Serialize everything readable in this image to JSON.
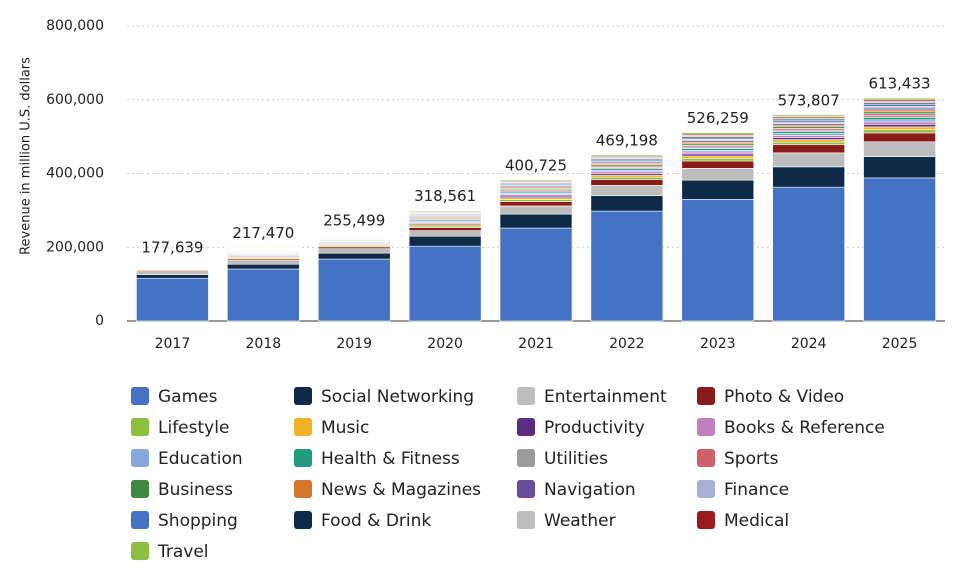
{
  "chart_data": {
    "type": "stacked-bar",
    "y_label": "Revenue in million U.S. dollars",
    "categories": [
      "2017",
      "2018",
      "2019",
      "2020",
      "2021",
      "2022",
      "2023",
      "2024",
      "2025"
    ],
    "ylim": [
      0,
      800000
    ],
    "yticks": [
      0,
      {
        "value": 200000,
        "label": "200,000"
      },
      {
        "value": 400000,
        "label": "400,000"
      },
      {
        "value": 600000,
        "label": "600,000"
      },
      {
        "value": 800000,
        "label": "800,000"
      }
    ],
    "grid": true,
    "totals": {
      "values": [
        177639,
        217470,
        255499,
        318561,
        400725,
        469198,
        526259,
        573807,
        613433
      ],
      "value_labels": [
        "177,639",
        "217,470",
        "255,499",
        "318,561",
        "400,725",
        "469,198",
        "526,259",
        "573,807",
        "613,433"
      ]
    },
    "series": [
      {
        "name": "Games",
        "color": "#4472c4",
        "values": [
          116000,
          141000,
          168000,
          203000,
          252000,
          298000,
          330000,
          363000,
          388000
        ]
      },
      {
        "name": "Social Networking",
        "color": "#0f2a47",
        "values": [
          10000,
          13000,
          16000,
          27000,
          38000,
          42000,
          52000,
          55000,
          58000
        ]
      },
      {
        "name": "Entertainment",
        "color": "#bdbdbd",
        "values": [
          8000,
          10000,
          12000,
          15000,
          22000,
          28000,
          32000,
          38000,
          40000
        ]
      },
      {
        "name": "Photo & Video",
        "color": "#8b1a1a",
        "values": [
          3000,
          4000,
          5000,
          8000,
          12000,
          16000,
          20000,
          22000,
          24000
        ]
      },
      {
        "name": "Lifestyle",
        "color": "#8cbf3f",
        "values": [
          2100,
          2900,
          2900,
          4200,
          5300,
          5900,
          6900,
          7200,
          8500
        ]
      },
      {
        "name": "Music",
        "color": "#f0b323",
        "values": [
          2000,
          2700,
          2700,
          3900,
          5000,
          5600,
          6500,
          6800,
          8000
        ]
      },
      {
        "name": "Productivity",
        "color": "#5b2c83",
        "values": [
          1700,
          2300,
          2300,
          3400,
          4300,
          4800,
          5600,
          5900,
          6900
        ]
      },
      {
        "name": "Books & Reference",
        "color": "#c27fc0",
        "values": [
          1600,
          2200,
          2200,
          3100,
          4000,
          4400,
          5200,
          5400,
          6400
        ]
      },
      {
        "name": "Education",
        "color": "#86a8dc",
        "values": [
          1400,
          2000,
          2000,
          2900,
          3600,
          4100,
          4700,
          5000,
          5800
        ]
      },
      {
        "name": "Health & Fitness",
        "color": "#1f9b80",
        "values": [
          1400,
          2000,
          2000,
          2900,
          3600,
          4100,
          4700,
          5000,
          5800
        ]
      },
      {
        "name": "Utilities",
        "color": "#9b9b9b",
        "values": [
          1300,
          1800,
          1800,
          2600,
          3300,
          3700,
          4300,
          4500,
          5300
        ]
      },
      {
        "name": "Sports",
        "color": "#d0606a",
        "values": [
          1300,
          1800,
          1800,
          2600,
          3300,
          3700,
          4300,
          4500,
          5300
        ]
      },
      {
        "name": "Business",
        "color": "#3e8a3e",
        "values": [
          1300,
          1800,
          1800,
          2600,
          3300,
          3700,
          4300,
          4500,
          5300
        ]
      },
      {
        "name": "News & Magazines",
        "color": "#d4762a",
        "values": [
          1300,
          1800,
          1800,
          2600,
          3300,
          3700,
          4300,
          4500,
          5300
        ]
      },
      {
        "name": "Navigation",
        "color": "#6b4c9a",
        "values": [
          1200,
          1600,
          1600,
          2300,
          3000,
          3300,
          3900,
          4100,
          4800
        ]
      },
      {
        "name": "Finance",
        "color": "#a9b0d6",
        "values": [
          1200,
          1600,
          1600,
          2300,
          3000,
          3300,
          3900,
          4100,
          4800
        ]
      },
      {
        "name": "Shopping",
        "color": "#4472c4",
        "values": [
          1200,
          1600,
          1600,
          2300,
          3000,
          3300,
          3900,
          4100,
          4800
        ]
      },
      {
        "name": "Food & Drink",
        "color": "#0f2a47",
        "values": [
          1000,
          1400,
          1400,
          2100,
          2600,
          3000,
          3400,
          3600,
          4200
        ]
      },
      {
        "name": "Weather",
        "color": "#bdbdbd",
        "values": [
          1000,
          1400,
          1400,
          2100,
          2600,
          3000,
          3400,
          3600,
          4200
        ]
      },
      {
        "name": "Medical",
        "color": "#9a1c1c",
        "values": [
          1000,
          1400,
          1400,
          2100,
          2600,
          3000,
          3400,
          3600,
          4200
        ]
      },
      {
        "name": "Travel",
        "color": "#8cbf3f",
        "values": [
          1200,
          1600,
          1600,
          2300,
          3000,
          3300,
          3900,
          4100,
          4800
        ]
      }
    ]
  }
}
